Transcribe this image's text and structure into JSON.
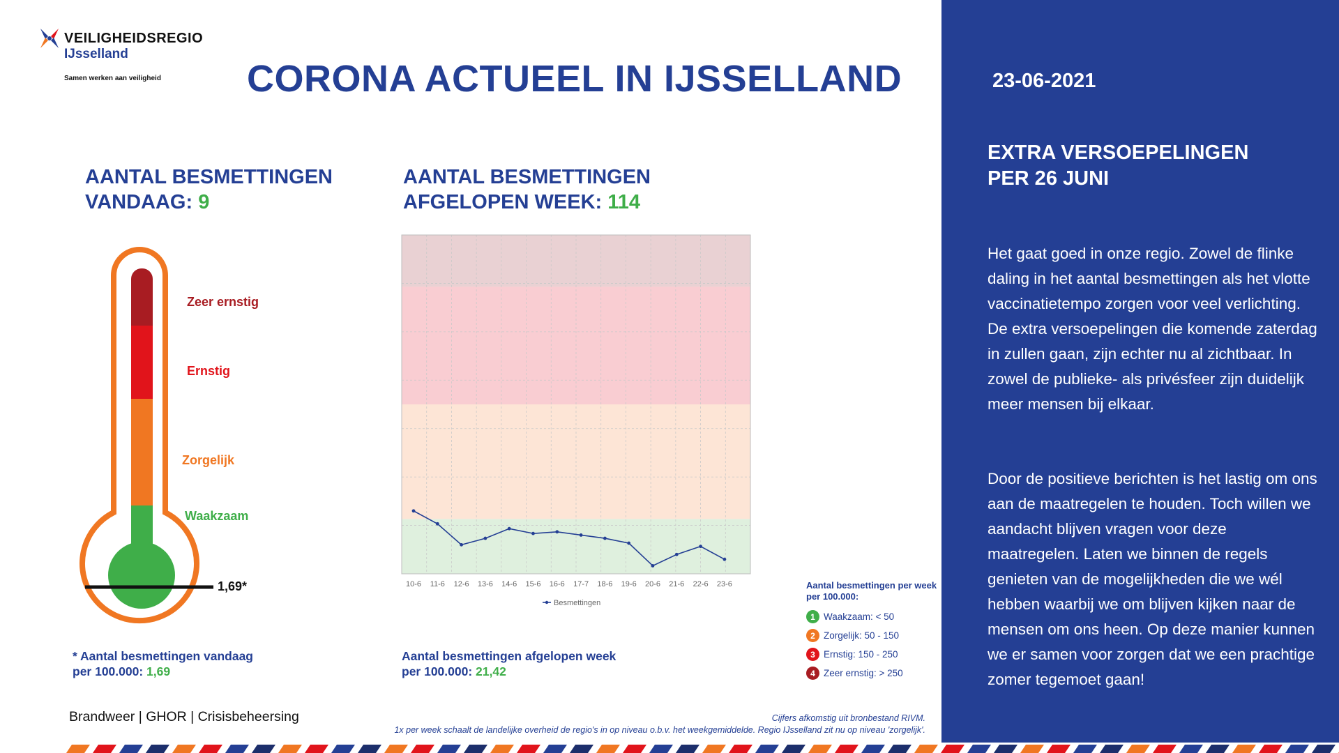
{
  "logo": {
    "name": "VEILIGHEIDSREGIO",
    "sub": "IJsselland",
    "tagline": "Samen werken aan veiligheid"
  },
  "title": "CORONA ACTUEEL IN IJSSELLAND",
  "today": {
    "heading_line1": "AANTAL BESMETTINGEN",
    "heading_line2": "VANDAAG: ",
    "count": "9",
    "levels": {
      "zeer_ernstig": "Zeer ernstig",
      "ernstig": "Ernstig",
      "zorgelijk": "Zorgelijk",
      "waakzaam": "Waakzaam"
    },
    "marker_value": "1,69*",
    "footnote_line1": "* Aantal besmettingen vandaag",
    "footnote_line2": "per 100.000: ",
    "footnote_value": "1,69"
  },
  "week": {
    "heading_line1": "AANTAL BESMETTINGEN",
    "heading_line2": "AFGELOPEN WEEK: ",
    "count": "114",
    "footnote_line1": "Aantal besmettingen afgelopen week",
    "footnote_line2": "per 100.000: ",
    "footnote_value": "21,42"
  },
  "chart_data": {
    "type": "line",
    "categories": [
      "10-6",
      "11-6",
      "12-6",
      "13-6",
      "14-6",
      "15-6",
      "16-6",
      "17-7",
      "18-6",
      "19-6",
      "20-6",
      "21-6",
      "22-6",
      "23-6"
    ],
    "series": [
      {
        "name": "Besmettingen",
        "values": [
          39,
          31,
          18,
          22,
          28,
          25,
          26,
          24,
          22,
          19,
          5,
          12,
          17,
          9
        ]
      }
    ],
    "ylim": [
      0,
      210
    ],
    "bands": [
      {
        "level": "Waakzaam",
        "from": 0,
        "to": 34,
        "color": "#dff0de"
      },
      {
        "level": "Zorgelijk",
        "from": 34,
        "to": 105,
        "color": "#fde5d6"
      },
      {
        "level": "Ernstig",
        "from": 105,
        "to": 178,
        "color": "#f9cdd2"
      },
      {
        "level": "Zeer ernstig",
        "from": 178,
        "to": 210,
        "color": "#e9d1d3"
      }
    ],
    "grid": true,
    "legend": "bottom-center",
    "line_color": "#243f94"
  },
  "legend": {
    "title": "Aantal besmettingen per week per 100.000:",
    "items": [
      {
        "num": "1",
        "label": "Waakzaam: < 50",
        "color": "#3fae49"
      },
      {
        "num": "2",
        "label": "Zorgelijk: 50 - 150",
        "color": "#f07722"
      },
      {
        "num": "3",
        "label": "Ernstig: 150 - 250",
        "color": "#e1141b"
      },
      {
        "num": "4",
        "label": "Zeer ernstig: > 250",
        "color": "#a81c22"
      }
    ]
  },
  "panel": {
    "date": "23-06-2021",
    "heading_line1": "EXTRA VERSOEPELINGEN",
    "heading_line2": "PER 26 JUNI",
    "paragraph1": "Het gaat goed in onze regio. Zowel de flinke daling in het aantal besmettingen als het vlotte vaccinatietempo zorgen voor veel verlichting. De extra versoepelingen die komende zaterdag in zullen gaan, zijn echter nu al zichtbaar. In zowel de publieke- als privésfeer zijn duidelijk meer mensen bij elkaar.",
    "paragraph2": "Door de positieve berichten is het lastig om ons aan de maatregelen te houden. Toch willen we aandacht blijven vragen voor deze maatregelen. Laten we binnen de regels genieten van de mogelijkheden die we wél hebben waarbij we om blijven kijken naar de mensen om ons heen. Op deze manier kunnen we er samen voor zorgen dat we een prachtige zomer tegemoet gaan!"
  },
  "footer": {
    "orgs": "Brandweer | GHOR | Crisisbeheersing",
    "source_line1": "Cijfers afkomstig uit bronbestand RIVM.",
    "source_line2": "1x per week schaalt de landelijke overheid de regio's in op niveau o.b.v. het weekgemiddelde. Regio IJsselland zit nu op niveau 'zorgelijk'."
  },
  "colors": {
    "brand_blue": "#243f94",
    "green": "#3fae49",
    "orange": "#f07722",
    "red": "#e1141b",
    "dark_red": "#a81c22"
  }
}
